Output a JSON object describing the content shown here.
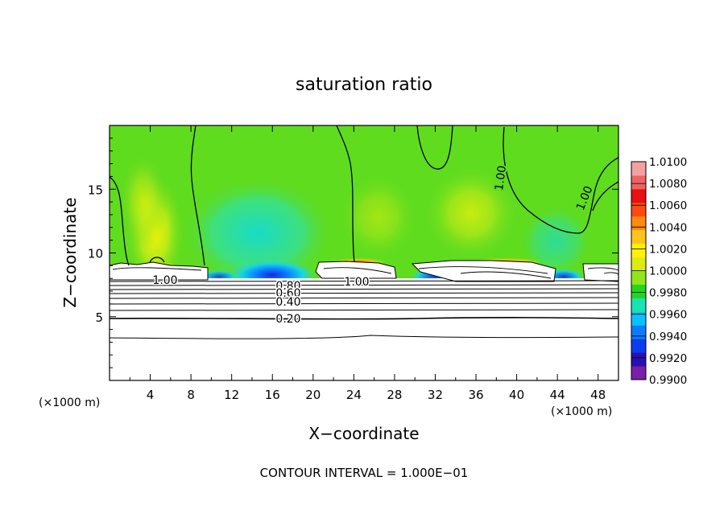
{
  "chart_data": {
    "type": "heatmap",
    "title": "saturation ratio",
    "xlabel": "X−coordinate",
    "ylabel": "Z−coordinate",
    "x_unit": "(×1000 m)",
    "z_unit": "(×1000 m)",
    "xlim": [
      0,
      50
    ],
    "ylim": [
      0,
      20
    ],
    "x_ticks": [
      "4",
      "8",
      "12",
      "16",
      "20",
      "24",
      "28",
      "32",
      "36",
      "40",
      "44",
      "48"
    ],
    "y_ticks": [
      "5",
      "10",
      "15"
    ],
    "colorbar": {
      "min": 0.99,
      "max": 1.01,
      "labels": [
        "1.0100",
        "1.0080",
        "1.0060",
        "1.0040",
        "1.0020",
        "1.0000",
        "0.9980",
        "0.9960",
        "0.9940",
        "0.9920",
        "0.9900"
      ],
      "colors": [
        "#7a1fa8",
        "#2a10b4",
        "#0a3cf0",
        "#0a7cff",
        "#06c2ff",
        "#18e4b0",
        "#21d621",
        "#8fe61a",
        "#dcec10",
        "#fff20a",
        "#ffc41a",
        "#ff8a10",
        "#ff4a10",
        "#e81010",
        "#f06262",
        "#f4a0a0"
      ]
    },
    "contour_labels": [
      "1.00",
      "1.00",
      "1.00",
      "1.00",
      "0.80",
      "0.60",
      "0.40",
      "0.20"
    ],
    "footer": "CONTOUR INTERVAL = 1.000E−01"
  }
}
